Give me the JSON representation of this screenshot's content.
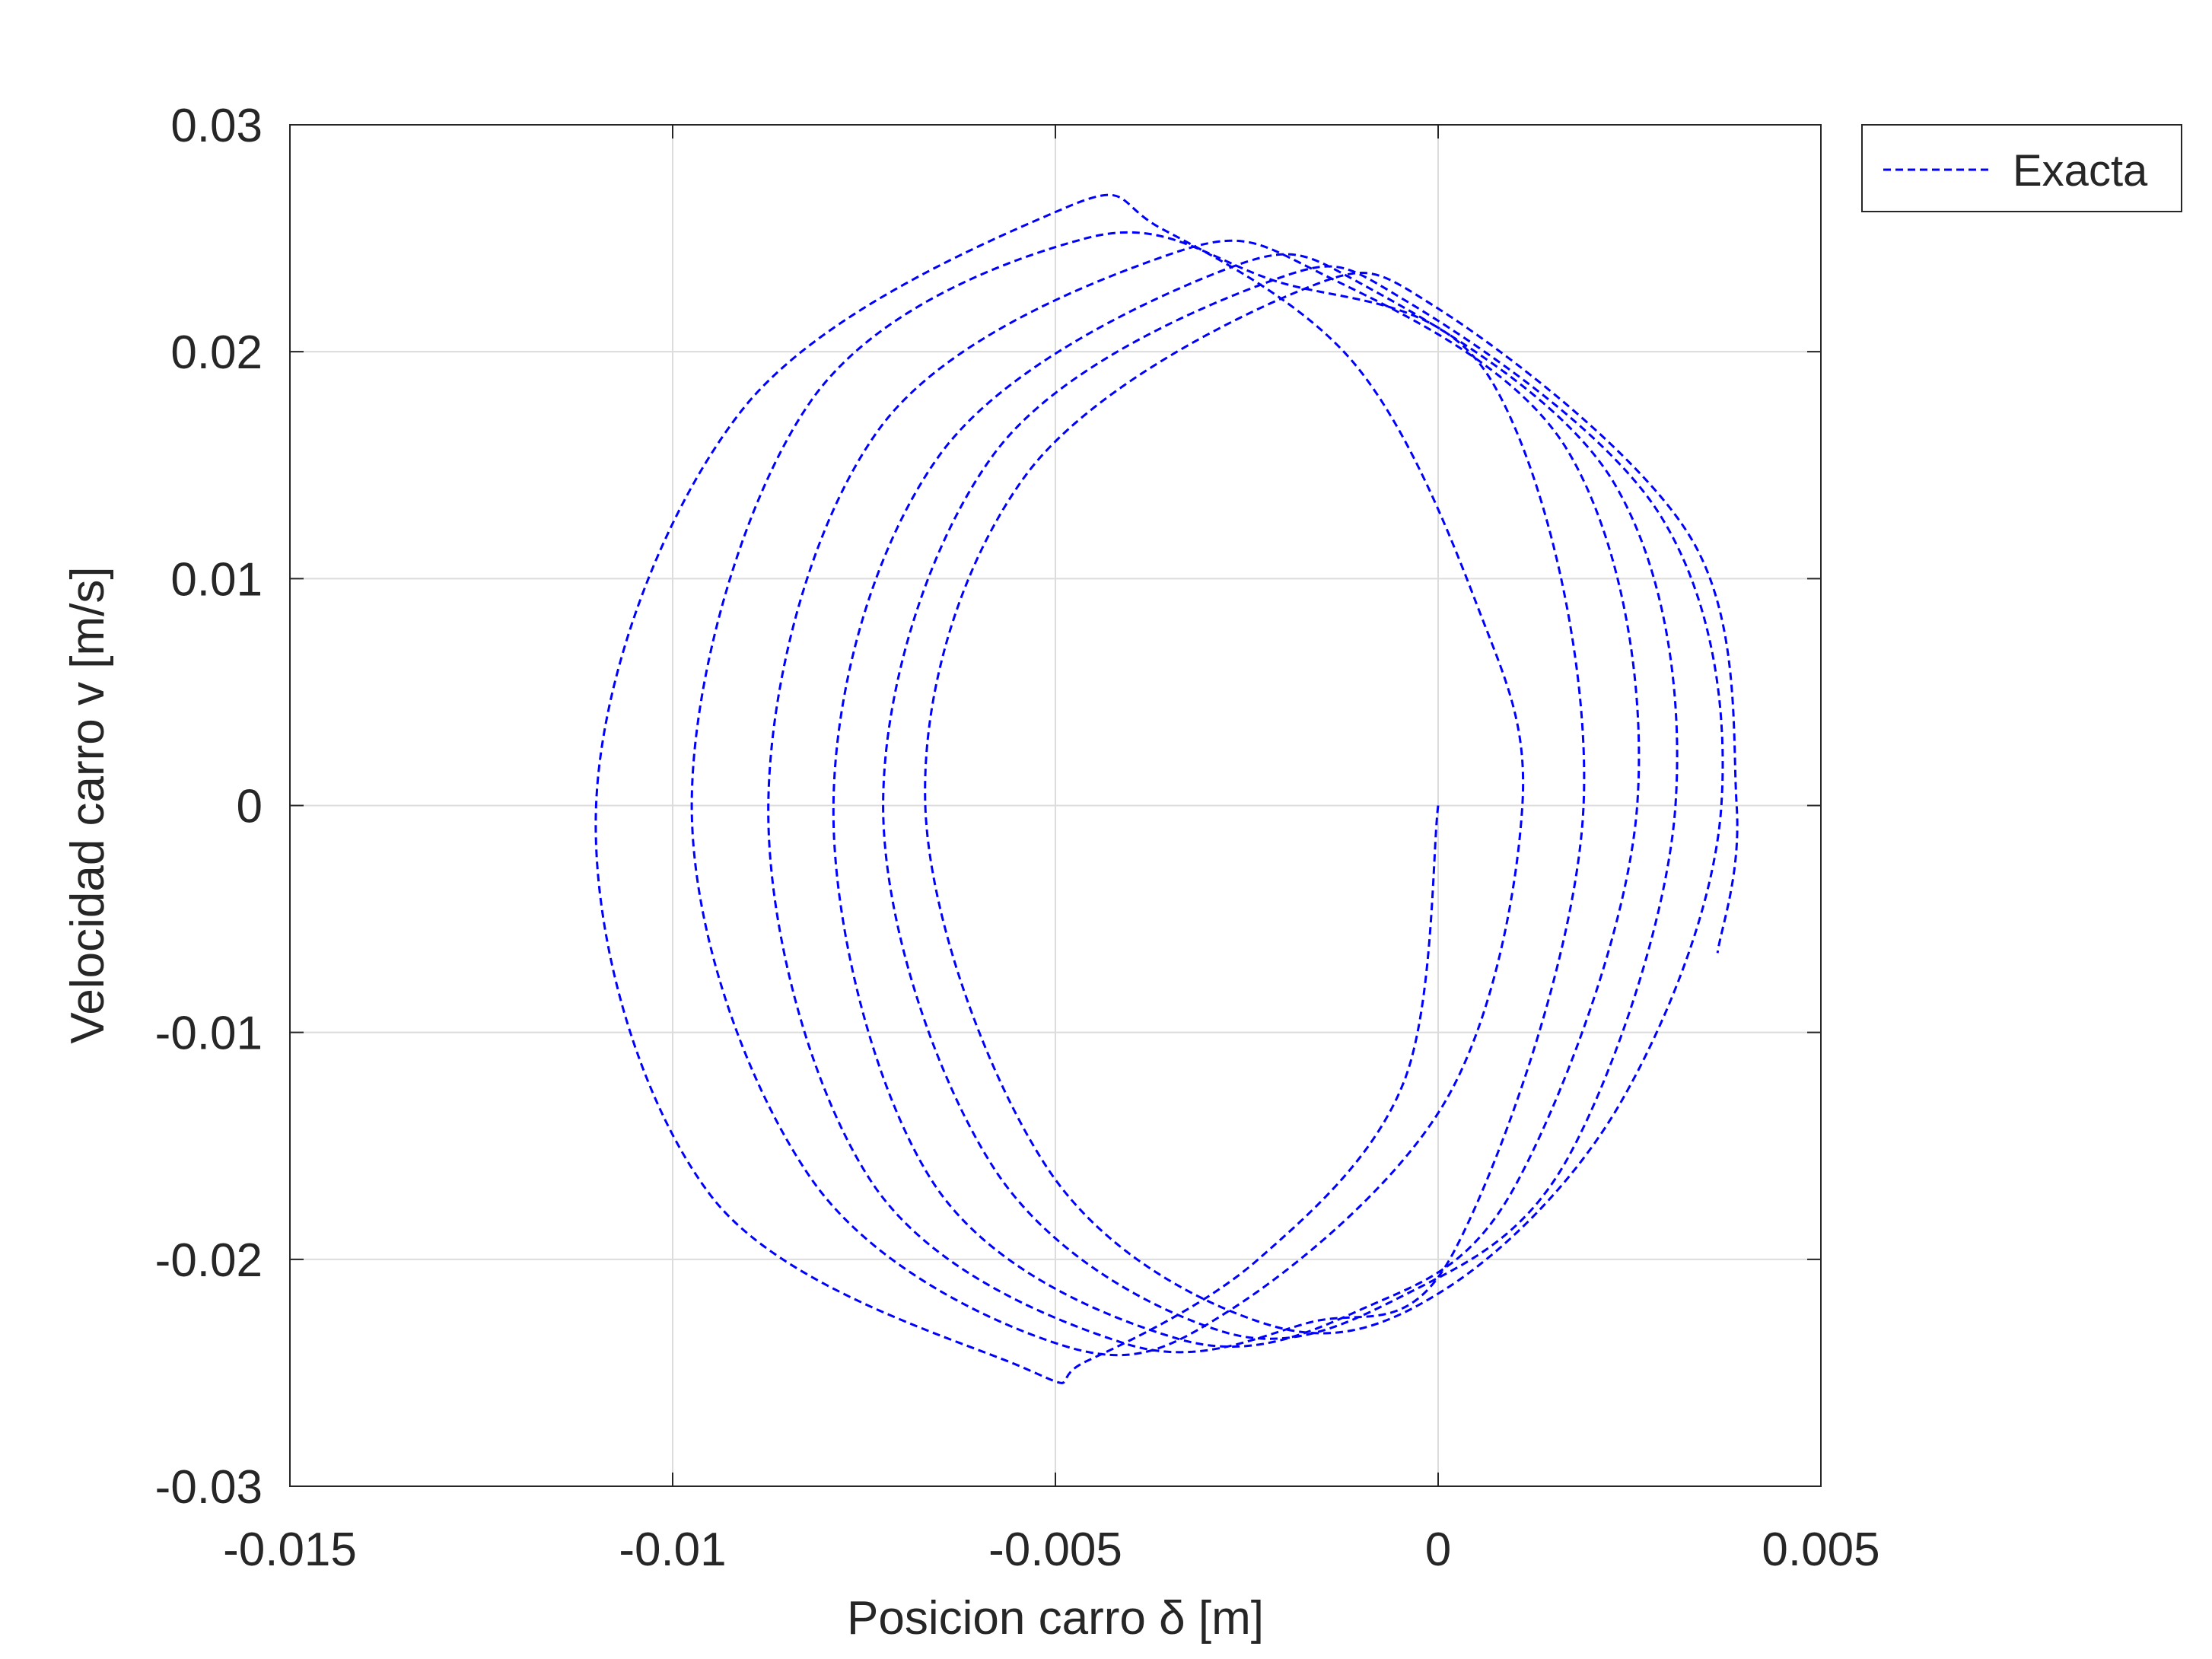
{
  "chart_data": {
    "type": "line",
    "title": "",
    "xlabel": "Posicion carro δ [m]",
    "ylabel": "Velocidad carro v [m/s]",
    "xlim": [
      -0.015,
      0.005
    ],
    "ylim": [
      -0.03,
      0.03
    ],
    "xticks": [
      -0.015,
      -0.01,
      -0.005,
      0,
      0.005
    ],
    "xtick_labels": [
      "-0.015",
      "-0.01",
      "-0.005",
      "0",
      "0.005"
    ],
    "yticks": [
      -0.03,
      -0.02,
      -0.01,
      0,
      0.01,
      0.02,
      0.03
    ],
    "ytick_labels": [
      "-0.03",
      "-0.02",
      "-0.01",
      "0",
      "0.01",
      "0.02",
      "0.03"
    ],
    "grid": true,
    "legend_position": "outside-top-right",
    "series": [
      {
        "name": "Exacta",
        "color": "#0000ff",
        "line_style": "dashed",
        "points": [
          [
            0.0,
            0.0
          ],
          [
            -0.00045,
            -0.0122
          ],
          [
            -0.00235,
            -0.02
          ],
          [
            -0.0046,
            -0.0245
          ],
          [
            -0.0054,
            -0.0248
          ],
          [
            -0.0095,
            -0.0172
          ],
          [
            -0.011,
            0.0
          ],
          [
            -0.0091,
            0.0174
          ],
          [
            -0.0049,
            0.0263
          ],
          [
            -0.0036,
            0.0254
          ],
          [
            -0.0011,
            0.0195
          ],
          [
            0.0005,
            0.0089
          ],
          [
            0.0011,
            0.0
          ],
          [
            0.0001,
            -0.013
          ],
          [
            -0.0027,
            -0.0222
          ],
          [
            -0.0049,
            -0.0238
          ],
          [
            -0.0082,
            -0.0164
          ],
          [
            -0.00975,
            0.0
          ],
          [
            -0.0082,
            0.0178
          ],
          [
            -0.0046,
            0.025
          ],
          [
            -0.0022,
            0.0232
          ],
          [
            0.0007,
            0.0187
          ],
          [
            0.0019,
            0.0
          ],
          [
            0.0002,
            -0.0197
          ],
          [
            -0.0017,
            -0.0228
          ],
          [
            -0.0041,
            -0.0237
          ],
          [
            -0.0074,
            -0.0166
          ],
          [
            -0.00875,
            0.0
          ],
          [
            -0.0073,
            0.0166
          ],
          [
            -0.0035,
            0.0243
          ],
          [
            -0.0015,
            0.0234
          ],
          [
            0.0017,
            0.0156
          ],
          [
            0.0026,
            0.0
          ],
          [
            0.001,
            -0.0168
          ],
          [
            -0.001,
            -0.0222
          ],
          [
            -0.0034,
            -0.0235
          ],
          [
            -0.0066,
            -0.0166
          ],
          [
            -0.0079,
            0.0
          ],
          [
            -0.0065,
            0.0155
          ],
          [
            -0.0028,
            0.0236
          ],
          [
            -0.0009,
            0.0228
          ],
          [
            0.0023,
            0.0142
          ],
          [
            0.0031,
            0.0
          ],
          [
            0.0017,
            -0.0155
          ],
          [
            -0.0004,
            -0.0215
          ],
          [
            -0.0028,
            -0.0232
          ],
          [
            -0.0058,
            -0.016
          ],
          [
            -0.00725,
            0.0
          ],
          [
            -0.0058,
            0.0155
          ],
          [
            -0.0022,
            0.0231
          ],
          [
            -0.0004,
            0.0222
          ],
          [
            0.0029,
            0.0128
          ],
          [
            0.0037,
            0.0
          ],
          [
            0.0024,
            -0.013
          ],
          [
            0.0001,
            -0.0213
          ],
          [
            -0.0022,
            -0.0229
          ],
          [
            -0.0051,
            -0.016
          ],
          [
            -0.0067,
            0.0
          ],
          [
            -0.0054,
            0.0145
          ],
          [
            -0.0018,
            0.0227
          ],
          [
            0.0,
            0.0219
          ],
          [
            0.0033,
            0.0118
          ],
          [
            0.0039,
            0.0
          ],
          [
            0.00365,
            -0.0065
          ]
        ]
      }
    ]
  }
}
